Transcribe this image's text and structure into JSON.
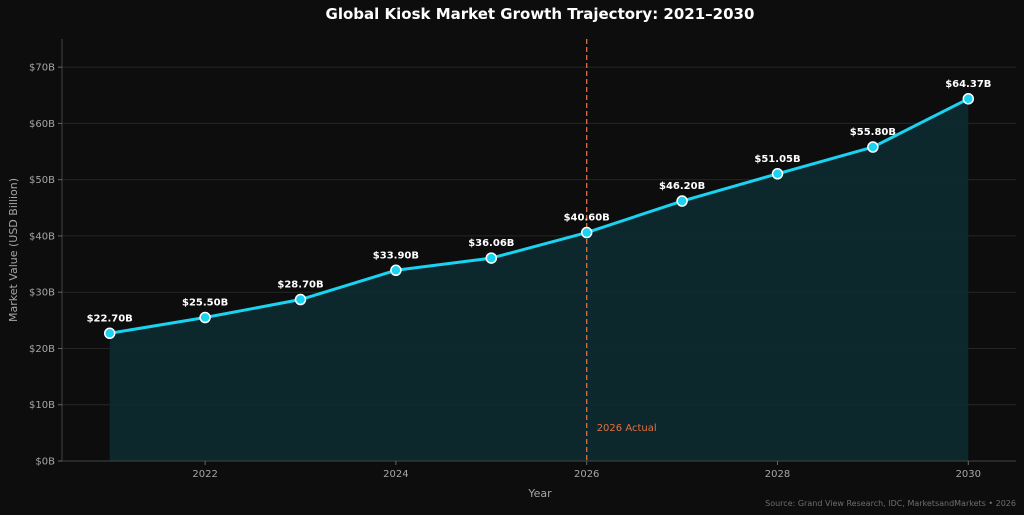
{
  "chart_data": {
    "type": "area",
    "title": "Global Kiosk Market Growth Trajectory: 2021–2030",
    "xlabel": "Year",
    "ylabel": "Market Value (USD Billion)",
    "x": [
      2021,
      2022,
      2023,
      2024,
      2025,
      2026,
      2027,
      2028,
      2029,
      2030
    ],
    "values": [
      22.7,
      25.5,
      28.7,
      33.9,
      36.06,
      40.6,
      46.2,
      51.05,
      55.8,
      64.37
    ],
    "data_labels": [
      "$22.70B",
      "$25.50B",
      "$28.70B",
      "$33.90B",
      "$36.06B",
      "$40.60B",
      "$46.20B",
      "$51.05B",
      "$55.80B",
      "$64.37B"
    ],
    "xlim": [
      2020.5,
      2030.5
    ],
    "ylim": [
      0,
      75
    ],
    "x_ticks": [
      2022,
      2024,
      2026,
      2028,
      2030
    ],
    "x_tick_labels": [
      "2022",
      "2024",
      "2026",
      "2028",
      "2030"
    ],
    "y_ticks": [
      0,
      10,
      20,
      30,
      40,
      50,
      60,
      70
    ],
    "y_tick_labels": [
      "$0B",
      "$10B",
      "$20B",
      "$30B",
      "$40B",
      "$50B",
      "$60B",
      "$70B"
    ],
    "grid": true,
    "reference_line": {
      "x": 2026,
      "label": "2026 Actual",
      "color": "#e07040"
    },
    "source": "Source: Grand View Research, IDC, MarketsandMarkets • 2026",
    "colors": {
      "line": "#1ad3f0",
      "fill": "#0e2a2f",
      "background": "#0d0d0d",
      "grid": "#262626",
      "marker_edge": "#ffffff"
    }
  }
}
